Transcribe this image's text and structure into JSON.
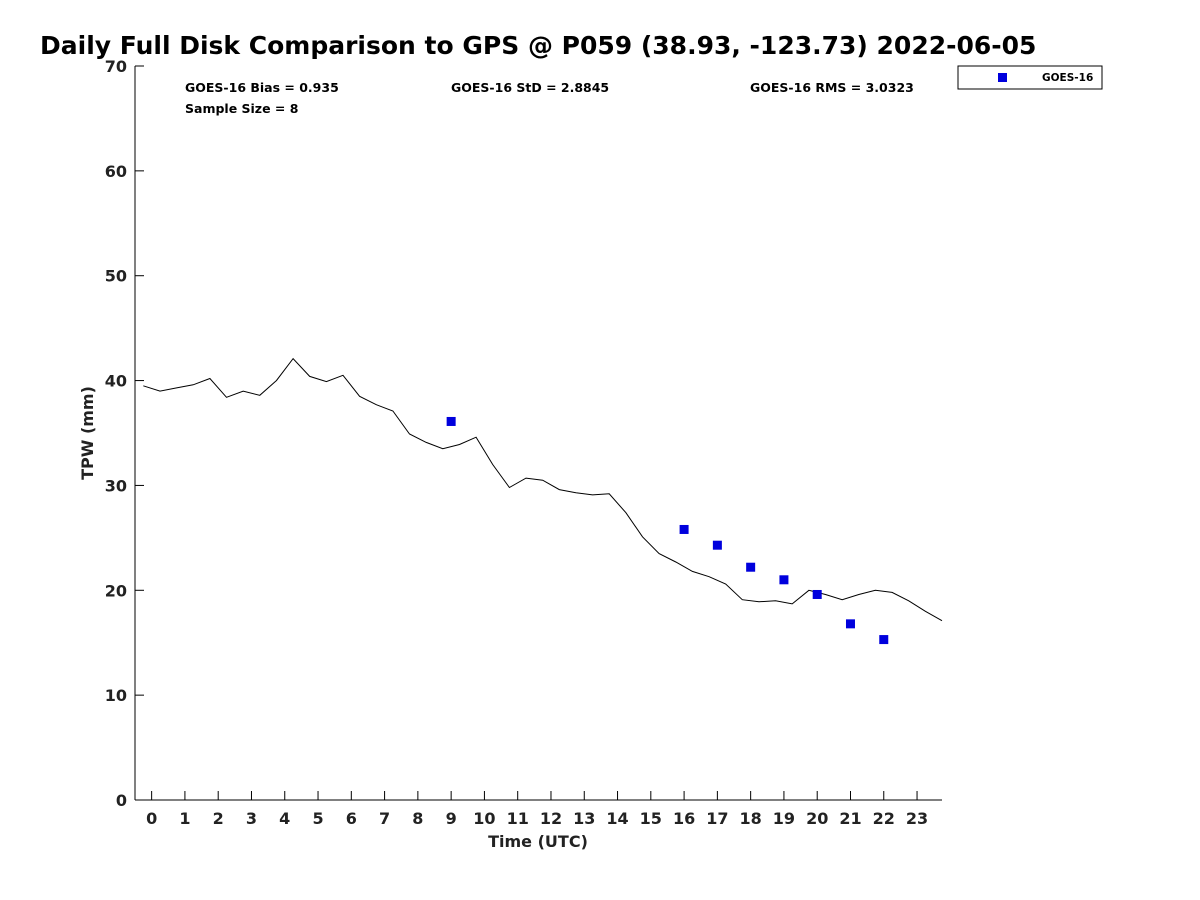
{
  "chart_data": {
    "type": "scatter",
    "title": "Daily Full Disk Comparison to GPS @ P059 (38.93, -123.73) 2022-06-05",
    "xlabel": "Time (UTC)",
    "ylabel": "TPW (mm)",
    "xlim": [
      -0.5,
      23.75
    ],
    "ylim": [
      0,
      70
    ],
    "xticks": [
      0,
      1,
      2,
      3,
      4,
      5,
      6,
      7,
      8,
      9,
      10,
      11,
      12,
      13,
      14,
      15,
      16,
      17,
      18,
      19,
      20,
      21,
      22,
      23
    ],
    "yticks": [
      0,
      10,
      20,
      30,
      40,
      50,
      60,
      70
    ],
    "grid": false,
    "legend_position": "top-right",
    "stats": {
      "bias": "GOES-16 Bias = 0.935",
      "std": "GOES-16 StD = 2.8845",
      "rms": "GOES-16 RMS = 3.0323",
      "sample_size": "Sample Size = 8"
    },
    "series": [
      {
        "name": "GPS",
        "kind": "line",
        "color": "#000000",
        "x": [
          -0.25,
          0.25,
          0.75,
          1.25,
          1.75,
          2.25,
          2.75,
          3.25,
          3.75,
          4.25,
          4.75,
          5.25,
          5.75,
          6.25,
          6.75,
          7.25,
          7.75,
          8.25,
          8.75,
          9.25,
          9.75,
          10.25,
          10.75,
          11.25,
          11.75,
          12.25,
          12.75,
          13.25,
          13.75,
          14.25,
          14.75,
          15.25,
          15.75,
          16.25,
          16.75,
          17.25,
          17.75,
          18.25,
          18.75,
          19.25,
          19.75,
          20.25,
          20.75,
          21.25,
          21.75,
          22.25,
          22.75,
          23.25,
          23.75
        ],
        "y": [
          39.5,
          39.0,
          39.3,
          39.6,
          40.2,
          38.4,
          39.0,
          38.6,
          40.0,
          42.1,
          40.4,
          39.9,
          40.5,
          38.5,
          37.7,
          37.1,
          34.9,
          34.1,
          33.5,
          33.9,
          34.6,
          32.0,
          29.8,
          30.7,
          30.5,
          29.6,
          29.3,
          29.1,
          29.2,
          27.4,
          25.1,
          23.5,
          22.7,
          21.8,
          21.3,
          20.6,
          19.1,
          18.9,
          19.0,
          18.7,
          20.0,
          19.6,
          19.1,
          19.6,
          20.0,
          19.8,
          19.0,
          18.0,
          17.1
        ]
      },
      {
        "name": "GOES-16",
        "kind": "scatter",
        "color": "#0000dd",
        "x": [
          9,
          16,
          17,
          18,
          19,
          20,
          21,
          22
        ],
        "y": [
          36.1,
          25.8,
          24.3,
          22.2,
          21.0,
          19.6,
          16.8,
          15.3
        ]
      }
    ]
  }
}
